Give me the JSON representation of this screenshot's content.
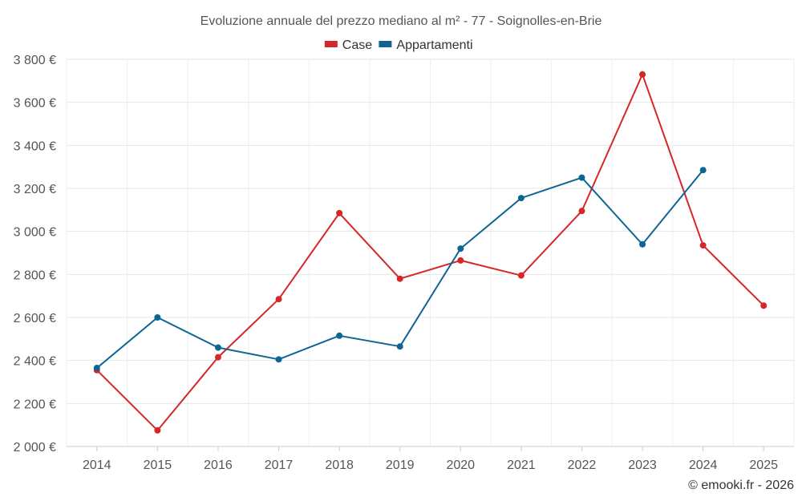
{
  "chart_data": {
    "type": "line",
    "title": "Evoluzione annuale del prezzo mediano al m² - 77 - Soignolles-en-Brie",
    "xlabel": "",
    "ylabel": "",
    "categories": [
      "2014",
      "2015",
      "2016",
      "2017",
      "2018",
      "2019",
      "2020",
      "2021",
      "2022",
      "2023",
      "2024",
      "2025"
    ],
    "series": [
      {
        "name": "Case",
        "color": "#d62728",
        "values": [
          2355,
          2075,
          2415,
          2685,
          3085,
          2780,
          2865,
          2795,
          3095,
          3730,
          2935,
          2655
        ]
      },
      {
        "name": "Appartamenti",
        "color": "#0d6594",
        "values": [
          2365,
          2600,
          2460,
          2405,
          2515,
          2465,
          2920,
          3155,
          3250,
          2940,
          3285,
          null
        ]
      }
    ],
    "ylim": [
      2000,
      3800
    ],
    "yticks": [
      2000,
      2200,
      2400,
      2600,
      2800,
      3000,
      3200,
      3400,
      3600,
      3800
    ],
    "ytick_labels": [
      "2 000 €",
      "2 200 €",
      "2 400 €",
      "2 600 €",
      "2 800 €",
      "3 000 €",
      "3 200 €",
      "3 400 €",
      "3 600 €",
      "3 800 €"
    ],
    "grid": true,
    "legend": "top-center"
  },
  "credit": "© emooki.fr - 2026"
}
